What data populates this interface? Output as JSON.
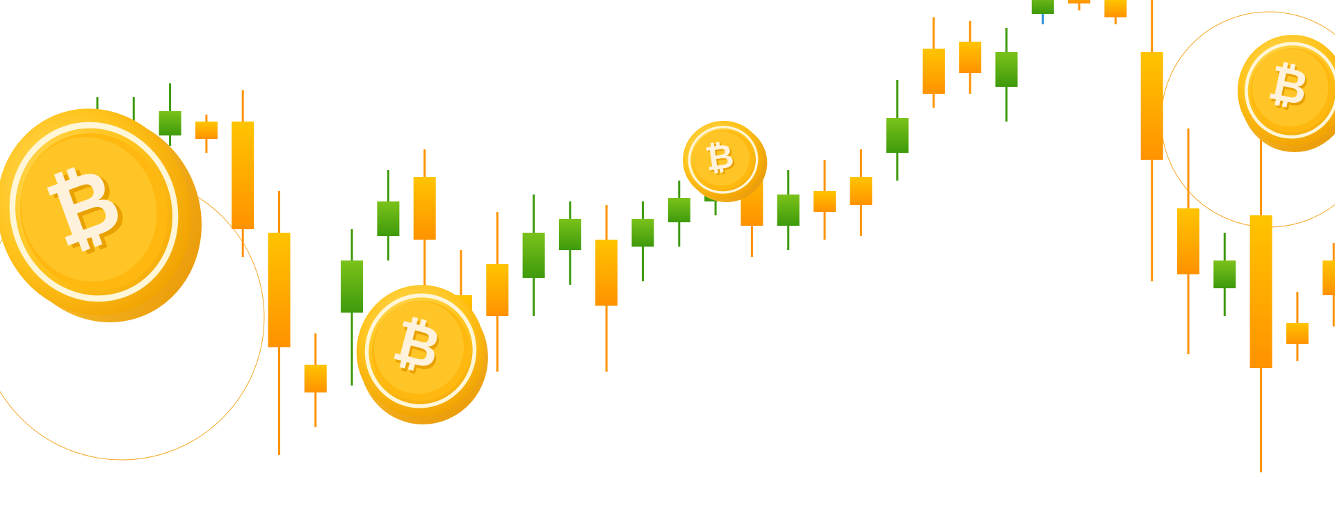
{
  "colors": {
    "background": "#ffffff",
    "up_green_top": "#7bc21a",
    "up_green_bottom": "#3e9a0c",
    "down_orange_top": "#ffc400",
    "down_orange_bottom": "#ff9200",
    "blue_wick": "#2a8fd6",
    "coin_gold": "#ffc21a",
    "coin_shadow": "#f4a400",
    "coin_symbol": "#fff2dc",
    "ring_line": "#f5a623"
  },
  "icons": [
    "bitcoin-coin-icon",
    "decorative-ring"
  ],
  "candles": [
    {
      "dir": "up",
      "open": 38,
      "close": 44,
      "high": 56,
      "low": 36
    },
    {
      "dir": "up",
      "open": 40,
      "close": 46,
      "high": 56,
      "low": 38
    },
    {
      "dir": "up",
      "open": 45,
      "close": 52,
      "high": 60,
      "low": 42
    },
    {
      "dir": "down",
      "open": 49,
      "close": 44,
      "high": 51,
      "low": 40
    },
    {
      "dir": "down",
      "open": 49,
      "close": 18,
      "high": 58,
      "low": 10
    },
    {
      "dir": "down",
      "open": 17,
      "close": -16,
      "high": 29,
      "low": -47
    },
    {
      "dir": "down",
      "open": -21,
      "close": -29,
      "high": -12,
      "low": -39
    },
    {
      "dir": "up",
      "open": -6,
      "close": 9,
      "high": 18,
      "low": -27
    },
    {
      "dir": "up",
      "open": 16,
      "close": 26,
      "high": 35,
      "low": 9
    },
    {
      "dir": "down",
      "open": 33,
      "close": 15,
      "high": 41,
      "low": -14
    },
    {
      "dir": "down",
      "open": -1,
      "close": -16,
      "high": 12,
      "low": -21
    },
    {
      "dir": "down",
      "open": 8,
      "close": -7,
      "high": 23,
      "low": -23
    },
    {
      "dir": "up",
      "open": 4,
      "close": 17,
      "high": 28,
      "low": -7
    },
    {
      "dir": "up",
      "open": 12,
      "close": 21,
      "high": 26,
      "low": 2
    },
    {
      "dir": "down",
      "open": 15,
      "close": -4,
      "high": 25,
      "low": -23
    },
    {
      "dir": "up",
      "open": 13,
      "close": 21,
      "high": 26,
      "low": 3
    },
    {
      "dir": "up",
      "open": 20,
      "close": 27,
      "high": 32,
      "low": 13
    },
    {
      "dir": "up",
      "open": 26,
      "close": 36,
      "high": 44,
      "low": 22
    },
    {
      "dir": "down",
      "open": 37,
      "close": 19,
      "high": 43,
      "low": 10
    },
    {
      "dir": "up",
      "open": 19,
      "close": 28,
      "high": 35,
      "low": 12
    },
    {
      "dir": "down",
      "open": 29,
      "close": 23,
      "high": 38,
      "low": 15
    },
    {
      "dir": "down",
      "open": 33,
      "close": 25,
      "high": 41,
      "low": 16
    },
    {
      "dir": "up",
      "open": 40,
      "close": 50,
      "high": 61,
      "low": 32
    },
    {
      "dir": "down",
      "open": 70,
      "close": 57,
      "high": 79,
      "low": 53
    },
    {
      "dir": "down",
      "open": 72,
      "close": 63,
      "high": 78,
      "low": 57
    },
    {
      "dir": "up",
      "open": 59,
      "close": 69,
      "high": 76,
      "low": 49
    },
    {
      "dir": "up",
      "open": 80,
      "close": 86,
      "high": 94,
      "low": 77
    },
    {
      "dir": "down",
      "open": 87,
      "close": 83,
      "high": 91,
      "low": 81
    },
    {
      "dir": "down",
      "open": 84,
      "close": 79,
      "high": 86,
      "low": 77
    },
    {
      "dir": "down",
      "open": 69,
      "close": 38,
      "high": 99,
      "low": 3
    },
    {
      "dir": "down",
      "open": 24,
      "close": 5,
      "high": 47,
      "low": -18
    },
    {
      "dir": "up",
      "open": 1,
      "close": 9,
      "high": 17,
      "low": -7
    },
    {
      "dir": "down",
      "open": 22,
      "close": -22,
      "high": 51,
      "low": -52
    },
    {
      "dir": "down",
      "open": -9,
      "close": -15,
      "high": 0,
      "low": -20
    },
    {
      "dir": "down",
      "open": 9,
      "close": -1,
      "high": 14,
      "low": -10
    }
  ]
}
